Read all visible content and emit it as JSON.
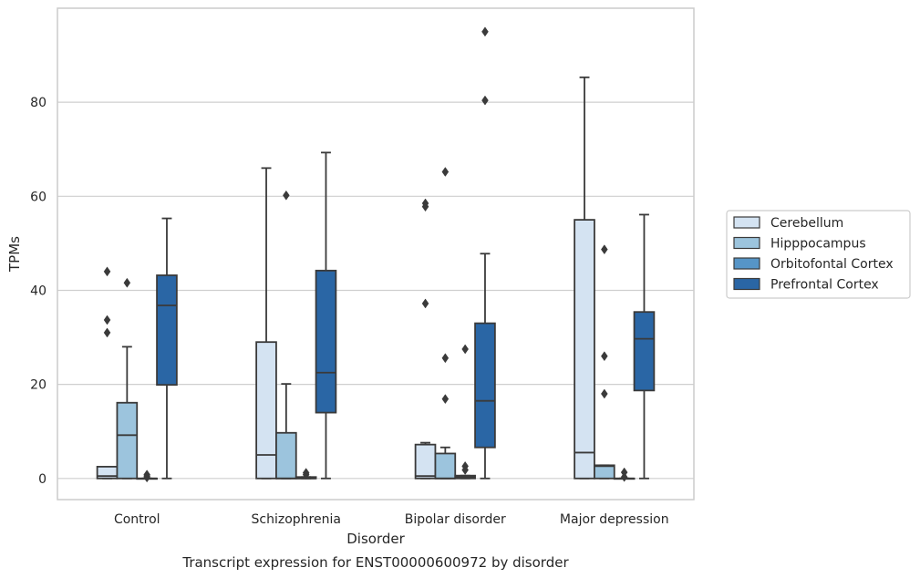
{
  "chart_data": {
    "type": "box",
    "xlabel": "Disorder",
    "ylabel": "TPMs",
    "caption": "Transcript expression for ENST00000600972 by disorder",
    "categories": [
      "Control",
      "Schizophrenia",
      "Bipolar disorder",
      "Major depression"
    ],
    "ylim": [
      -4.5,
      100
    ],
    "yticks": [
      0,
      20,
      40,
      60,
      80
    ],
    "yticks_labels": [
      "0",
      "20",
      "40",
      "60",
      "80"
    ],
    "grid": "y",
    "legend_position": "right",
    "series": [
      {
        "name": "Cerebellum",
        "color": "#d4e3f2",
        "boxes": [
          {
            "min": 0,
            "q1": 0,
            "median": 0.5,
            "q3": 2.5,
            "max": 2.5,
            "outliers": [
              44,
              33.7,
              31
            ]
          },
          {
            "min": 0,
            "q1": 0,
            "median": 5,
            "q3": 29,
            "max": 66,
            "outliers": []
          },
          {
            "min": 0,
            "q1": 0,
            "median": 0.5,
            "q3": 7.2,
            "max": 7.6,
            "outliers": [
              58.5,
              57.8,
              37.2
            ]
          },
          {
            "min": 0,
            "q1": 0,
            "median": 5.5,
            "q3": 55,
            "max": 85.3,
            "outliers": []
          }
        ]
      },
      {
        "name": "Hipppocampus",
        "color": "#9cc4dd",
        "boxes": [
          {
            "min": 0,
            "q1": 0,
            "median": 9.2,
            "q3": 16.1,
            "max": 28,
            "outliers": [
              41.6
            ]
          },
          {
            "min": 0,
            "q1": 0,
            "median": 0,
            "q3": 9.7,
            "max": 20.1,
            "outliers": [
              60.2
            ]
          },
          {
            "min": 0,
            "q1": 0,
            "median": 0,
            "q3": 5.3,
            "max": 6.6,
            "outliers": [
              65.2,
              25.6,
              16.9
            ]
          },
          {
            "min": 0,
            "q1": 0,
            "median": 2.6,
            "q3": 2.8,
            "max": 2.8,
            "outliers": [
              48.7,
              26,
              18
            ]
          }
        ]
      },
      {
        "name": "Orbitofontal Cortex",
        "color": "#5695c7",
        "boxes": [
          {
            "min": 0,
            "q1": 0,
            "median": 0,
            "q3": 0,
            "max": 0,
            "outliers": [
              0.8,
              0.5,
              0.2
            ]
          },
          {
            "min": 0,
            "q1": 0,
            "median": 0,
            "q3": 0.3,
            "max": 0.3,
            "outliers": [
              1.2,
              0.8
            ]
          },
          {
            "min": 0,
            "q1": 0,
            "median": 0.3,
            "q3": 0.6,
            "max": 0.6,
            "outliers": [
              27.5,
              2.6,
              1.8
            ]
          },
          {
            "min": 0,
            "q1": 0,
            "median": 0,
            "q3": 0,
            "max": 0,
            "outliers": [
              1.3,
              0.3
            ]
          }
        ]
      },
      {
        "name": "Prefrontal Cortex",
        "color": "#2a66a5",
        "boxes": [
          {
            "min": 0,
            "q1": 19.9,
            "median": 36.8,
            "q3": 43.2,
            "max": 55.3,
            "outliers": []
          },
          {
            "min": 0,
            "q1": 14,
            "median": 22.5,
            "q3": 44.2,
            "max": 69.3,
            "outliers": []
          },
          {
            "min": 0,
            "q1": 6.6,
            "median": 16.5,
            "q3": 33,
            "max": 47.8,
            "outliers": [
              95,
              80.4
            ]
          },
          {
            "min": 0,
            "q1": 18.7,
            "median": 29.7,
            "q3": 35.4,
            "max": 56.1,
            "outliers": []
          }
        ]
      }
    ]
  }
}
